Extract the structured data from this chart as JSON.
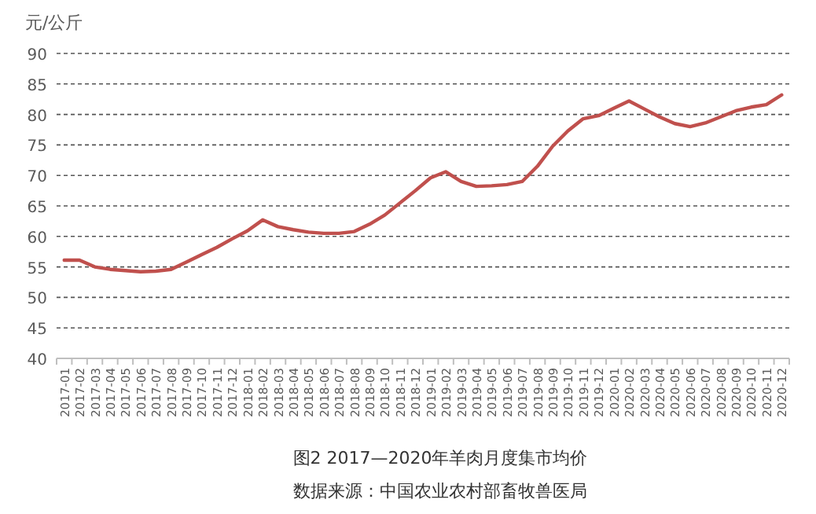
{
  "chart_data": {
    "type": "line",
    "title": "图2  2017—2020年羊肉月度集市均价",
    "ylabel": "元/公斤",
    "annotations": [
      "数据来源：中国农业农村部畜牧兽医局"
    ],
    "categories": [
      "2017-01",
      "2017-02",
      "2017-03",
      "2017-04",
      "2017-05",
      "2017-06",
      "2017-07",
      "2017-08",
      "2017-09",
      "2017-10",
      "2017-11",
      "2017-12",
      "2018-01",
      "2018-02",
      "2018-03",
      "2018-04",
      "2018-05",
      "2018-06",
      "2018-07",
      "2018-08",
      "2018-09",
      "2018-10",
      "2018-11",
      "2018-12",
      "2019-01",
      "2019-02",
      "2019-03",
      "2019-04",
      "2019-05",
      "2019-06",
      "2019-07",
      "2019-08",
      "2019-09",
      "2019-10",
      "2019-11",
      "2019-12",
      "2020-01",
      "2020-02",
      "2020-03",
      "2020-04",
      "2020-05",
      "2020-06",
      "2020-07",
      "2020-08",
      "2020-09",
      "2020-10",
      "2020-11",
      "2020-12"
    ],
    "series": [
      {
        "color": "#c0504d",
        "values": [
          56.1,
          56.1,
          55.0,
          54.6,
          54.4,
          54.2,
          54.3,
          54.6,
          55.8,
          57.0,
          58.2,
          59.6,
          60.9,
          62.7,
          61.6,
          61.1,
          60.7,
          60.5,
          60.5,
          60.8,
          62.0,
          63.5,
          65.5,
          67.5,
          69.6,
          70.6,
          69.0,
          68.2,
          68.3,
          68.5,
          69.0,
          71.5,
          74.8,
          77.3,
          79.3,
          79.8,
          81.0,
          82.2,
          80.9,
          79.6,
          78.5,
          78.0,
          78.6,
          79.6,
          80.6,
          81.2,
          81.6,
          83.2
        ]
      }
    ],
    "ylim": [
      40,
      90
    ],
    "yticks": [
      40,
      45,
      50,
      55,
      60,
      65,
      70,
      75,
      80,
      85,
      90
    ],
    "grid": "y",
    "marker": "none",
    "line_style": "solid"
  }
}
